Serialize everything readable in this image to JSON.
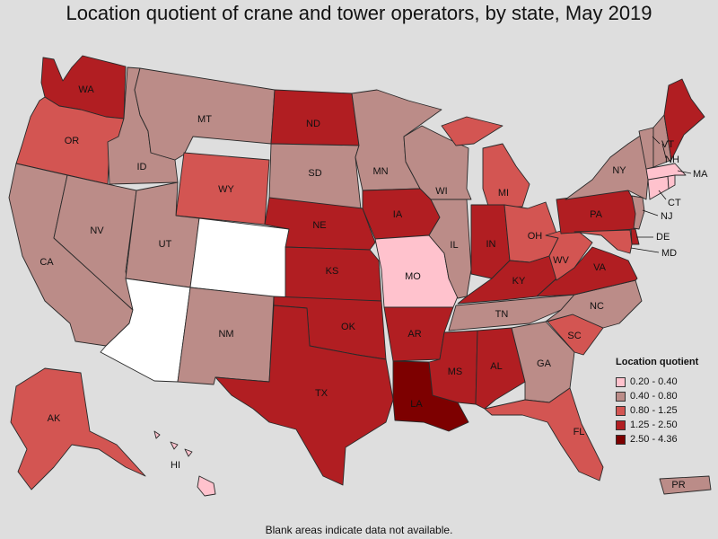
{
  "title": "Location quotient of crane and tower operators, by state, May 2019",
  "footnote": "Blank areas indicate data not available.",
  "legend": {
    "title": "Location quotient",
    "bins": [
      {
        "label": "0.20 - 0.40",
        "color": "#ffc2cd"
      },
      {
        "label": "0.40 - 0.80",
        "color": "#bb8c88"
      },
      {
        "label": "0.80 - 1.25",
        "color": "#d35552"
      },
      {
        "label": "1.25 - 2.50",
        "color": "#b11e22"
      },
      {
        "label": "2.50 - 4.36",
        "color": "#7d0000"
      }
    ],
    "no_data_color": "#ffffff"
  },
  "states": [
    {
      "abbr": "WA",
      "bin": 3
    },
    {
      "abbr": "OR",
      "bin": 2
    },
    {
      "abbr": "CA",
      "bin": 1
    },
    {
      "abbr": "ID",
      "bin": 1
    },
    {
      "abbr": "NV",
      "bin": 1
    },
    {
      "abbr": "MT",
      "bin": 1
    },
    {
      "abbr": "WY",
      "bin": 2
    },
    {
      "abbr": "UT",
      "bin": 1
    },
    {
      "abbr": "AZ",
      "bin": null
    },
    {
      "abbr": "CO",
      "bin": null
    },
    {
      "abbr": "NM",
      "bin": 1
    },
    {
      "abbr": "ND",
      "bin": 3
    },
    {
      "abbr": "SD",
      "bin": 1
    },
    {
      "abbr": "NE",
      "bin": 3
    },
    {
      "abbr": "KS",
      "bin": 3
    },
    {
      "abbr": "OK",
      "bin": 3
    },
    {
      "abbr": "TX",
      "bin": 3
    },
    {
      "abbr": "MN",
      "bin": 1
    },
    {
      "abbr": "IA",
      "bin": 3
    },
    {
      "abbr": "MO",
      "bin": 0
    },
    {
      "abbr": "AR",
      "bin": 3
    },
    {
      "abbr": "LA",
      "bin": 4
    },
    {
      "abbr": "WI",
      "bin": 1
    },
    {
      "abbr": "IL",
      "bin": 1
    },
    {
      "abbr": "MI",
      "bin": 2
    },
    {
      "abbr": "IN",
      "bin": 3
    },
    {
      "abbr": "OH",
      "bin": 2
    },
    {
      "abbr": "KY",
      "bin": 3
    },
    {
      "abbr": "TN",
      "bin": 1
    },
    {
      "abbr": "MS",
      "bin": 3
    },
    {
      "abbr": "AL",
      "bin": 3
    },
    {
      "abbr": "GA",
      "bin": 1
    },
    {
      "abbr": "FL",
      "bin": 2
    },
    {
      "abbr": "SC",
      "bin": 2
    },
    {
      "abbr": "NC",
      "bin": 1
    },
    {
      "abbr": "VA",
      "bin": 3
    },
    {
      "abbr": "WV",
      "bin": 2
    },
    {
      "abbr": "PA",
      "bin": 3
    },
    {
      "abbr": "NY",
      "bin": 1
    },
    {
      "abbr": "NJ",
      "bin": 1
    },
    {
      "abbr": "DE",
      "bin": 3
    },
    {
      "abbr": "MD",
      "bin": 2
    },
    {
      "abbr": "CT",
      "bin": 0
    },
    {
      "abbr": "RI",
      "bin": 0
    },
    {
      "abbr": "MA",
      "bin": 0
    },
    {
      "abbr": "VT",
      "bin": 1
    },
    {
      "abbr": "NH",
      "bin": 1
    },
    {
      "abbr": "ME",
      "bin": 3
    },
    {
      "abbr": "AK",
      "bin": 2
    },
    {
      "abbr": "HI",
      "bin": 0
    },
    {
      "abbr": "PR",
      "bin": 1
    }
  ]
}
